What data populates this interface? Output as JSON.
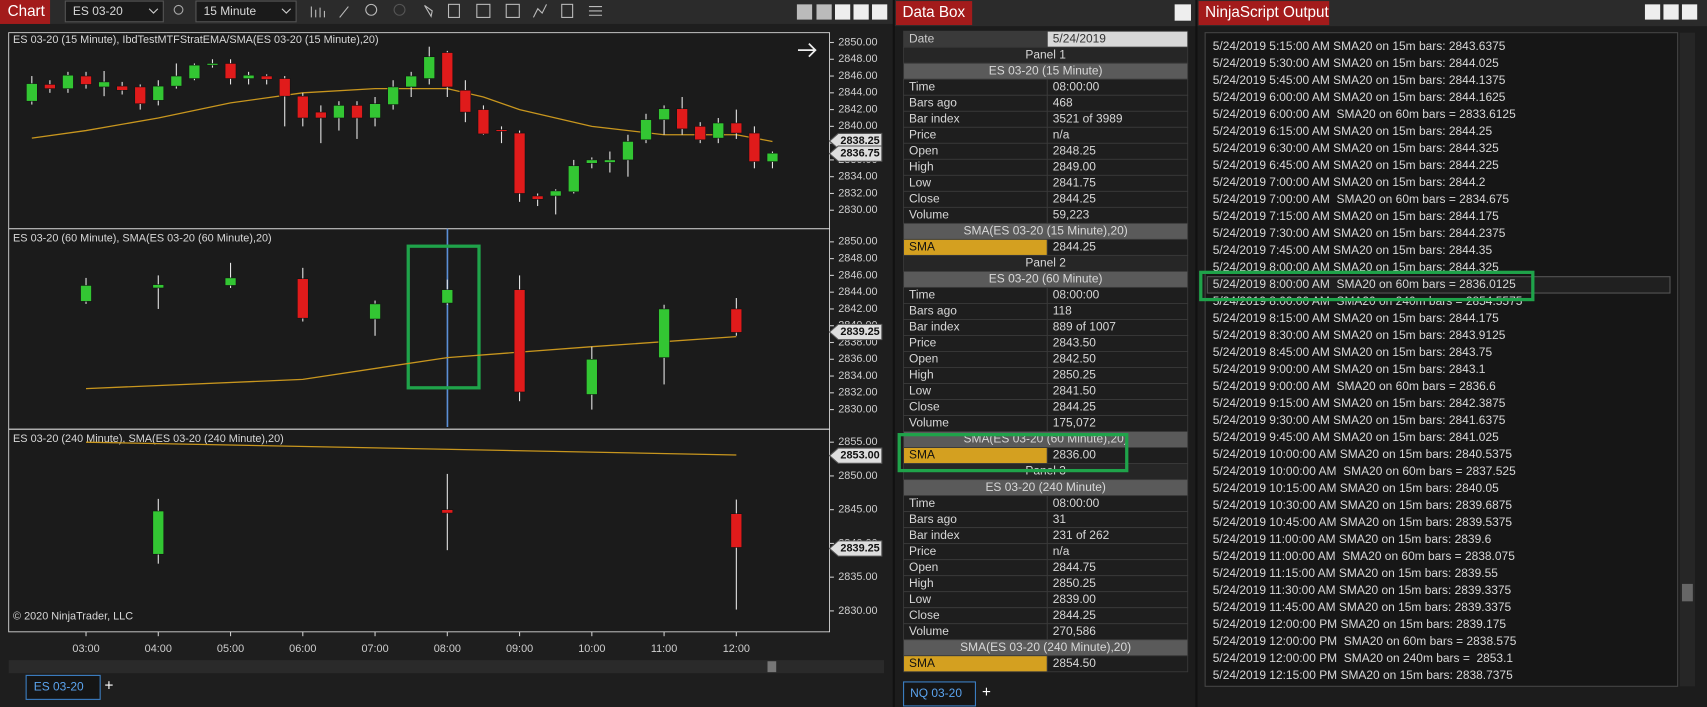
{
  "chart_window": {
    "title": "Chart",
    "instrument": "ES 03-20",
    "interval": "15 Minute",
    "tab": "ES 03-20",
    "copyright": "© 2020 NinjaTrader, LLC",
    "up_color": "#33c633",
    "down_color": "#e01b1b",
    "sma_color": "#c8961e",
    "xlim": [
      1.93,
      13.29
    ],
    "xticks": [
      {
        "value": 3,
        "label": "03:00"
      },
      {
        "value": 4,
        "label": "04:00"
      },
      {
        "value": 5,
        "label": "05:00"
      },
      {
        "value": 6,
        "label": "06:00"
      },
      {
        "value": 7,
        "label": "07:00"
      },
      {
        "value": 8,
        "label": "08:00"
      },
      {
        "value": 9,
        "label": "09:00"
      },
      {
        "value": 10,
        "label": "10:00"
      },
      {
        "value": 11,
        "label": "11:00"
      },
      {
        "value": 12,
        "label": "12:00"
      }
    ],
    "panels": [
      {
        "label": "ES 03-20 (15 Minute), IbdTestMTFStratEMA/SMA(ES 03-20 (15 Minute),20)",
        "ylim": [
          2828.05,
          2851.17
        ],
        "yticks": [
          {
            "value": 2830,
            "label": "2830.00"
          },
          {
            "value": 2832,
            "label": "2832.00"
          },
          {
            "value": 2834,
            "label": "2834.00"
          },
          {
            "value": 2836,
            "label": "2836.00"
          },
          {
            "value": 2838,
            "label": "2838.00"
          },
          {
            "value": 2840,
            "label": "2840.00"
          },
          {
            "value": 2842,
            "label": "2842.00"
          },
          {
            "value": 2844,
            "label": "2844.00"
          },
          {
            "value": 2846,
            "label": "2846.00"
          },
          {
            "value": 2848,
            "label": "2848.00"
          },
          {
            "value": 2850,
            "label": "2850.00"
          }
        ],
        "markers": [
          2838.25,
          2836.75
        ],
        "candles": {
          "x": [
            2.25,
            2.5,
            2.75,
            3,
            3.25,
            3.5,
            3.75,
            4,
            4.25,
            4.5,
            4.75,
            5,
            5.25,
            5.5,
            5.75,
            6,
            6.25,
            6.5,
            6.75,
            7,
            7.25,
            7.5,
            7.75,
            8,
            8.25,
            8.5,
            8.75,
            9,
            9.25,
            9.5,
            9.75,
            10,
            10.25,
            10.5,
            10.75,
            11,
            11.25,
            11.5,
            11.75,
            12,
            12.25,
            12.5
          ],
          "open": [
            2843,
            2845,
            2844.5,
            2846,
            2844.7,
            2844.8,
            2844.7,
            2843.1,
            2844.8,
            2845.7,
            2847.3,
            2847.5,
            2845.7,
            2846,
            2845.7,
            2843.6,
            2841.7,
            2841,
            2842.5,
            2841,
            2842.6,
            2844.7,
            2845.7,
            2848.8,
            2844.3,
            2842,
            2839.6,
            2839.2,
            2831.7,
            2831.7,
            2832.2,
            2835.6,
            2835.7,
            2836,
            2838.4,
            2840.8,
            2842.1,
            2840,
            2838.6,
            2840.4,
            2839.2,
            2835.8
          ],
          "high": [
            2846,
            2845.5,
            2846.5,
            2846.5,
            2846.6,
            2845.3,
            2845,
            2845.5,
            2847.5,
            2847.5,
            2848,
            2848,
            2846.5,
            2846.2,
            2846,
            2844,
            2842.5,
            2843,
            2843,
            2843.5,
            2845.5,
            2846.5,
            2849.5,
            2849,
            2845.5,
            2842.5,
            2840,
            2839.5,
            2832,
            2832.5,
            2836,
            2836.3,
            2837,
            2839,
            2841.5,
            2842.5,
            2843.5,
            2840.5,
            2841,
            2842,
            2840,
            2837
          ],
          "low": [
            2842.6,
            2844,
            2844,
            2844.5,
            2843.6,
            2843.8,
            2842,
            2842.5,
            2844.5,
            2845.5,
            2847,
            2845,
            2845,
            2845,
            2840,
            2840,
            2838,
            2839.5,
            2838.5,
            2840,
            2842,
            2843.5,
            2845,
            2843.5,
            2840.5,
            2839,
            2838,
            2831,
            2830.5,
            2829.5,
            2832,
            2835,
            2834.5,
            2834,
            2838,
            2839,
            2839,
            2838,
            2838,
            2838.5,
            2835,
            2835
          ],
          "close": [
            2845.1,
            2844.5,
            2846.1,
            2845,
            2845.3,
            2844.3,
            2842.7,
            2844.8,
            2846,
            2847.3,
            2847.5,
            2845.7,
            2846.1,
            2845.6,
            2843.6,
            2841,
            2841,
            2842.5,
            2841,
            2842.7,
            2844.7,
            2846,
            2848.3,
            2844.7,
            2841.7,
            2839.1,
            2839.4,
            2832,
            2831.3,
            2832.3,
            2835.3,
            2836,
            2836,
            2838.2,
            2840.8,
            2842.1,
            2839.7,
            2838.4,
            2840.4,
            2839.2,
            2835.8,
            2836.8
          ]
        },
        "sma": {
          "x": [
            2.25,
            3,
            4,
            5,
            6,
            7,
            8,
            8.5,
            9,
            10,
            11,
            12,
            12.5
          ],
          "values": [
            2838.6,
            2839.5,
            2841,
            2842.8,
            2844,
            2844.5,
            2844.5,
            2843.5,
            2842,
            2840,
            2839,
            2839,
            2838.2
          ]
        }
      },
      {
        "label": "ES 03-20 (60 Minute), SMA(ES 03-20 (60 Minute),20)",
        "ylim": [
          2827.92,
          2851.3
        ],
        "yticks": [
          {
            "value": 2830,
            "label": "2830.00"
          },
          {
            "value": 2832,
            "label": "2832.00"
          },
          {
            "value": 2834,
            "label": "2834.00"
          },
          {
            "value": 2836,
            "label": "2836.00"
          },
          {
            "value": 2838,
            "label": "2838.00"
          },
          {
            "value": 2840,
            "label": "2840.00"
          },
          {
            "value": 2842,
            "label": "2842.00"
          },
          {
            "value": 2844,
            "label": "2844.00"
          },
          {
            "value": 2846,
            "label": "2846.00"
          },
          {
            "value": 2848,
            "label": "2848.00"
          },
          {
            "value": 2850,
            "label": "2850.00"
          }
        ],
        "markers": [
          2839.25
        ],
        "candles": {
          "x": [
            3,
            4,
            5,
            6,
            7,
            8,
            9,
            10,
            11,
            12
          ],
          "open": [
            2842.9,
            2844.5,
            2844.8,
            2845.6,
            2840.8,
            2842.7,
            2844.3,
            2831.8,
            2836.2,
            2842
          ],
          "high": [
            2845.7,
            2846,
            2847.5,
            2846.9,
            2843,
            2845.5,
            2846,
            2837.5,
            2842.5,
            2843.3
          ],
          "low": [
            2842.6,
            2842,
            2844.5,
            2840.5,
            2838.8,
            2842.5,
            2831,
            2830,
            2833,
            2838.8
          ],
          "close": [
            2844.8,
            2844.9,
            2845.7,
            2840.9,
            2842.6,
            2844.3,
            2832.1,
            2836,
            2842,
            2839.2
          ]
        },
        "sma": {
          "x": [
            3,
            6,
            8,
            10,
            12
          ],
          "values": [
            2832.5,
            2833.6,
            2836.2,
            2837.5,
            2838.7
          ]
        }
      },
      {
        "label": "ES 03-20 (240 Minute), SMA(ES 03-20 (240 Minute),20)",
        "ylim": [
          2826.9,
          2856.6
        ],
        "yticks": [
          {
            "value": 2830,
            "label": "2830.00"
          },
          {
            "value": 2835,
            "label": "2835.00"
          },
          {
            "value": 2840,
            "label": "2840.00"
          },
          {
            "value": 2845,
            "label": "2845.00"
          },
          {
            "value": 2850,
            "label": "2850.00"
          },
          {
            "value": 2855,
            "label": "2855.00"
          }
        ],
        "markers": [
          {
            "value": 2853,
            "label": "2853.00"
          },
          2839.25
        ],
        "candles": {
          "x": [
            4,
            8,
            12
          ],
          "open": [
            2838.4,
            2845,
            2844.4
          ],
          "high": [
            2846.6,
            2850.3,
            2846.5
          ],
          "low": [
            2837,
            2839,
            2830.2
          ],
          "close": [
            2844.8,
            2844.5,
            2839.4
          ]
        },
        "sma": {
          "x": [
            3,
            12
          ],
          "values": [
            2855,
            2853.1
          ]
        }
      }
    ]
  },
  "data_box": {
    "title": "Data Box",
    "date_label": "Date",
    "date": "5/24/2019",
    "tab": "NQ 03-20",
    "panels": [
      {
        "title": "Panel 1",
        "series": "ES 03-20 (15 Minute)",
        "rows": [
          [
            "Time",
            "08:00:00"
          ],
          [
            "Bars ago",
            "468"
          ],
          [
            "Bar index",
            "3521 of 3989"
          ],
          [
            "Price",
            "n/a"
          ],
          [
            "Open",
            "2848.25"
          ],
          [
            "High",
            "2849.00"
          ],
          [
            "Low",
            "2841.75"
          ],
          [
            "Close",
            "2844.25"
          ],
          [
            "Volume",
            "59,223"
          ]
        ],
        "indicator": "SMA(ES 03-20 (15 Minute),20)",
        "indicator_row": [
          "SMA",
          "2844.25"
        ]
      },
      {
        "title": "Panel 2",
        "series": "ES 03-20 (60 Minute)",
        "rows": [
          [
            "Time",
            "08:00:00"
          ],
          [
            "Bars ago",
            "118"
          ],
          [
            "Bar index",
            "889 of 1007"
          ],
          [
            "Price",
            "2843.50"
          ],
          [
            "Open",
            "2842.50"
          ],
          [
            "High",
            "2850.25"
          ],
          [
            "Low",
            "2841.50"
          ],
          [
            "Close",
            "2844.25"
          ],
          [
            "Volume",
            "175,072"
          ]
        ],
        "indicator": "SMA(ES 03-20 (60 Minute),20)",
        "indicator_row": [
          "SMA",
          "2836.00"
        ]
      },
      {
        "title": "Panel 3",
        "series": "ES 03-20 (240 Minute)",
        "rows": [
          [
            "Time",
            "08:00:00"
          ],
          [
            "Bars ago",
            "31"
          ],
          [
            "Bar index",
            "231 of 262"
          ],
          [
            "Price",
            "n/a"
          ],
          [
            "Open",
            "2844.75"
          ],
          [
            "High",
            "2850.25"
          ],
          [
            "Low",
            "2839.00"
          ],
          [
            "Close",
            "2844.25"
          ],
          [
            "Volume",
            "270,586"
          ]
        ],
        "indicator": "SMA(ES 03-20 (240 Minute),20)",
        "indicator_row": [
          "SMA",
          "2854.50"
        ]
      }
    ]
  },
  "ninjascript_output": {
    "title": "NinjaScript Output",
    "lines": [
      "5/24/2019 5:15:00 AM SMA20 on 15m bars: 2843.6375",
      "5/24/2019 5:30:00 AM SMA20 on 15m bars: 2844.025",
      "5/24/2019 5:45:00 AM SMA20 on 15m bars: 2844.1375",
      "5/24/2019 6:00:00 AM SMA20 on 15m bars: 2844.1625",
      "5/24/2019 6:00:00 AM  SMA20 on 60m bars = 2833.6125",
      "5/24/2019 6:15:00 AM SMA20 on 15m bars: 2844.25",
      "5/24/2019 6:30:00 AM SMA20 on 15m bars: 2844.325",
      "5/24/2019 6:45:00 AM SMA20 on 15m bars: 2844.225",
      "5/24/2019 7:00:00 AM SMA20 on 15m bars: 2844.2",
      "5/24/2019 7:00:00 AM  SMA20 on 60m bars = 2834.675",
      "5/24/2019 7:15:00 AM SMA20 on 15m bars: 2844.175",
      "5/24/2019 7:30:00 AM SMA20 on 15m bars: 2844.2375",
      "5/24/2019 7:45:00 AM SMA20 on 15m bars: 2844.35",
      "5/24/2019 8:00:00 AM SMA20 on 15m bars: 2844.325",
      "5/24/2019 8:00:00 AM  SMA20 on 60m bars = 2836.0125",
      "5/24/2019 8:00:00 AM  SMA20 on 240m bars = 2854.5575",
      "5/24/2019 8:15:00 AM SMA20 on 15m bars: 2844.175",
      "5/24/2019 8:30:00 AM SMA20 on 15m bars: 2843.9125",
      "5/24/2019 8:45:00 AM SMA20 on 15m bars: 2843.75",
      "5/24/2019 9:00:00 AM SMA20 on 15m bars: 2843.1",
      "5/24/2019 9:00:00 AM  SMA20 on 60m bars = 2836.6",
      "5/24/2019 9:15:00 AM SMA20 on 15m bars: 2842.3875",
      "5/24/2019 9:30:00 AM SMA20 on 15m bars: 2841.6375",
      "5/24/2019 9:45:00 AM SMA20 on 15m bars: 2841.025",
      "5/24/2019 10:00:00 AM SMA20 on 15m bars: 2840.5375",
      "5/24/2019 10:00:00 AM  SMA20 on 60m bars = 2837.525",
      "5/24/2019 10:15:00 AM SMA20 on 15m bars: 2840.05",
      "5/24/2019 10:30:00 AM SMA20 on 15m bars: 2839.6875",
      "5/24/2019 10:45:00 AM SMA20 on 15m bars: 2839.5375",
      "5/24/2019 11:00:00 AM SMA20 on 15m bars: 2839.6",
      "5/24/2019 11:00:00 AM  SMA20 on 60m bars = 2838.075",
      "5/24/2019 11:15:00 AM SMA20 on 15m bars: 2839.55",
      "5/24/2019 11:30:00 AM SMA20 on 15m bars: 2839.3375",
      "5/24/2019 11:45:00 AM SMA20 on 15m bars: 2839.3375",
      "5/24/2019 12:00:00 PM SMA20 on 15m bars: 2839.175",
      "5/24/2019 12:00:00 PM  SMA20 on 60m bars = 2838.575",
      "5/24/2019 12:00:00 PM  SMA20 on 240m bars =  2853.1",
      "5/24/2019 12:15:00 PM SMA20 on 15m bars: 2838.7375"
    ]
  }
}
